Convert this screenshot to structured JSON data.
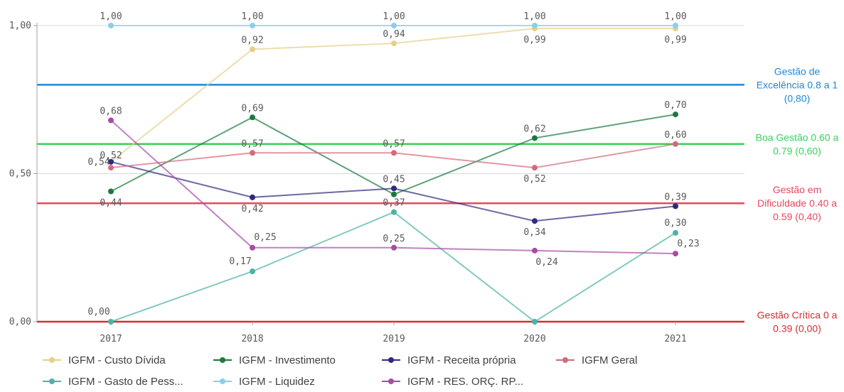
{
  "chart_data": {
    "type": "line",
    "categories": [
      "2017",
      "2018",
      "2019",
      "2020",
      "2021"
    ],
    "ylim": [
      0,
      1
    ],
    "yticks": [
      "0,00",
      "0,50",
      "1,00"
    ],
    "grid": true,
    "legend_position": "bottom",
    "series": [
      {
        "name": "IGFM - Custo Dívida",
        "color": "#e6cf8b",
        "values": [
          0.54,
          0.92,
          0.94,
          0.99,
          0.99
        ],
        "labels": [
          "0,54",
          "0,92",
          "0,94",
          "0,99",
          "0,99"
        ]
      },
      {
        "name": "IGFM - Investimento",
        "color": "#1a7a3c",
        "values": [
          0.44,
          0.69,
          0.43,
          0.62,
          0.7
        ],
        "labels": [
          "0,44",
          "0,69",
          "",
          "0,62",
          "0,70"
        ]
      },
      {
        "name": "IGFM - Receita própria",
        "color": "#2e2a7e",
        "values": [
          0.54,
          0.42,
          0.45,
          0.34,
          0.39
        ],
        "labels": [
          "",
          "0,42",
          "0,45",
          "0,34",
          "0,39"
        ]
      },
      {
        "name": "IGFM Geral",
        "color": "#d46a7e",
        "values": [
          0.52,
          0.57,
          0.57,
          0.52,
          0.6
        ],
        "labels": [
          "0,52",
          "0,57",
          "0,57",
          "0,52",
          "0,60"
        ]
      },
      {
        "name": "IGFM - Gasto de Pess...",
        "color": "#4db3a6",
        "values": [
          0.0,
          0.17,
          0.37,
          0.0,
          0.3
        ],
        "labels": [
          "0,00",
          "0,17",
          "0,37",
          "",
          "0,30"
        ]
      },
      {
        "name": "IGFM - Liquidez",
        "color": "#8dcdee",
        "values": [
          1.0,
          1.0,
          1.0,
          1.0,
          1.0
        ],
        "labels": [
          "1,00",
          "1,00",
          "1,00",
          "1,00",
          "1,00"
        ]
      },
      {
        "name": "IGFM - RES. ORÇ. RP...",
        "color": "#a64ca6",
        "values": [
          0.68,
          0.25,
          0.25,
          0.24,
          0.23
        ],
        "labels": [
          "0,68",
          "0,25",
          "0,25",
          "0,24",
          "0,23"
        ]
      }
    ],
    "reference_lines": [
      {
        "value": 0.8,
        "color": "#1e88d6",
        "label_lines": [
          "Gestão de",
          "Excelência 0.8 a 1",
          "(0,80)"
        ]
      },
      {
        "value": 0.6,
        "color": "#3ccf5a",
        "label_lines": [
          "Boa Gestão 0.60 a",
          "0.79 (0,60)"
        ]
      },
      {
        "value": 0.4,
        "color": "#e8475f",
        "label_lines": [
          "Gestão em",
          "Dificuldade 0.40 a",
          "0.59 (0,40)"
        ]
      },
      {
        "value": 0.0,
        "color": "#d32f2f",
        "label_lines": [
          "Gestão Crítica 0 a",
          "0.39 (0,00)"
        ]
      }
    ]
  }
}
